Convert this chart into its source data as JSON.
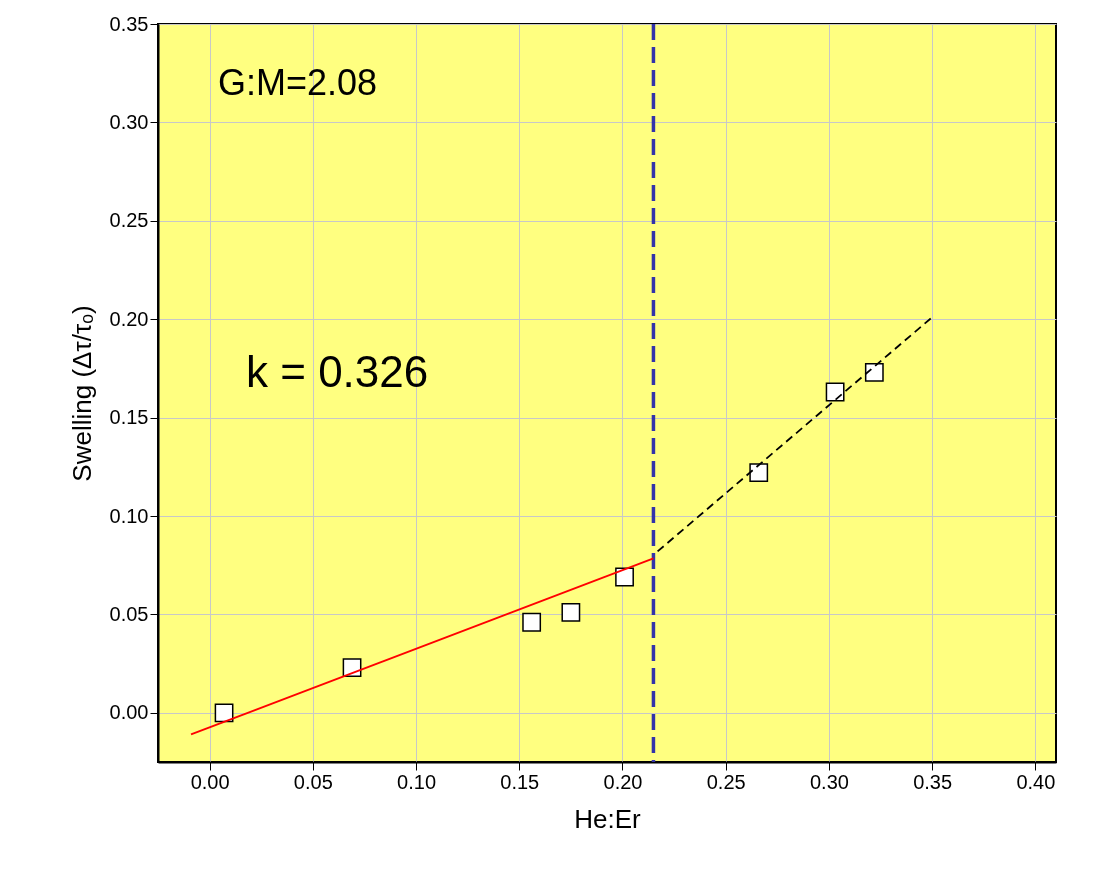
{
  "chart_data": {
    "type": "scatter",
    "xlabel": "He:Er",
    "ylabel": "Swelling (Δτ/τₒ)",
    "xlim": [
      -0.025,
      0.41
    ],
    "ylim": [
      -0.025,
      0.35
    ],
    "xticks": [
      {
        "value": 0,
        "label": "0.00"
      },
      0.05,
      {
        "value": 0.1,
        "label": "0.10"
      },
      0.15,
      {
        "value": 0.2,
        "label": "0.20"
      },
      0.25,
      {
        "value": 0.3,
        "label": "0.30"
      },
      0.35,
      {
        "value": 0.4,
        "label": "0.40"
      }
    ],
    "yticks": [
      {
        "value": 0,
        "label": "0.00"
      },
      0.05,
      {
        "value": 0.1,
        "label": "0.10"
      },
      0.15,
      {
        "value": 0.2,
        "label": "0.20"
      },
      0.25,
      {
        "value": 0.3,
        "label": "0.30"
      },
      0.35
    ],
    "grid": true,
    "series": [
      {
        "color": "#ffffff",
        "marker": "square",
        "x": [
          0.007,
          0.069,
          0.156,
          0.175,
          0.201,
          0.266,
          0.303,
          0.322
        ],
        "values": [
          0.0,
          0.023,
          0.046,
          0.051,
          0.069,
          0.122,
          0.163,
          0.173
        ]
      },
      {
        "type": "line",
        "color": "#ff0000",
        "line_style": "solid",
        "x": [
          -0.009,
          0.215
        ],
        "values": [
          -0.011,
          0.0785
        ]
      },
      {
        "type": "line",
        "color": "#000000",
        "line_style": "dashed",
        "x": [
          0.217,
          0.35
        ],
        "values": [
          0.082,
          0.201
        ]
      }
    ],
    "ref_lines": [
      {
        "axis": "x",
        "value": 0.215,
        "color": "#3333aa",
        "line_style": "dashed"
      }
    ],
    "annotations": [
      "G:M=2.08",
      "k = 0.326"
    ]
  }
}
